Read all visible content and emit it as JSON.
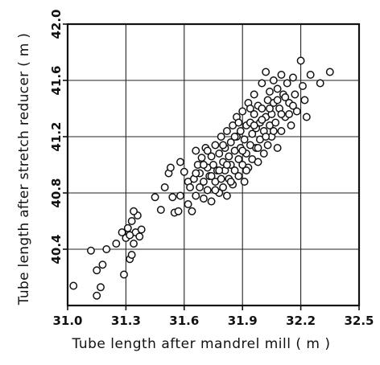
{
  "chart_data": {
    "type": "scatter",
    "title": "",
    "xlabel": "Tube length after mandrel mill ( m )",
    "ylabel": "Tube length after stretch reducer ( m )",
    "xlim": [
      31.0,
      32.5
    ],
    "ylim": [
      40.0,
      42.0
    ],
    "x_ticks": [
      "31.0",
      "31.3",
      "31.6",
      "31.9",
      "32.2",
      "32.5"
    ],
    "x_tick_values": [
      31.0,
      31.3,
      31.6,
      31.9,
      32.2,
      32.5
    ],
    "y_ticks": [
      "40.4",
      "40.8",
      "41.2",
      "41.6",
      "42.0"
    ],
    "y_tick_values": [
      40.4,
      40.8,
      41.2,
      41.6,
      42.0
    ],
    "grid": true,
    "marker": "open-circle",
    "points": [
      [
        31.03,
        40.14
      ],
      [
        31.12,
        40.39
      ],
      [
        31.15,
        40.07
      ],
      [
        31.17,
        40.13
      ],
      [
        31.18,
        40.29
      ],
      [
        31.2,
        40.4
      ],
      [
        31.15,
        40.25
      ],
      [
        31.25,
        40.44
      ],
      [
        31.28,
        40.52
      ],
      [
        31.29,
        40.22
      ],
      [
        31.3,
        40.48
      ],
      [
        31.31,
        40.55
      ],
      [
        31.32,
        40.33
      ],
      [
        31.33,
        40.36
      ],
      [
        31.33,
        40.6
      ],
      [
        31.34,
        40.44
      ],
      [
        31.35,
        40.52
      ],
      [
        31.36,
        40.64
      ],
      [
        31.34,
        40.67
      ],
      [
        31.37,
        40.49
      ],
      [
        31.38,
        40.54
      ],
      [
        31.32,
        40.5
      ],
      [
        31.45,
        40.77
      ],
      [
        31.48,
        40.68
      ],
      [
        31.5,
        40.84
      ],
      [
        31.52,
        40.94
      ],
      [
        31.53,
        40.98
      ],
      [
        31.54,
        40.77
      ],
      [
        31.55,
        40.66
      ],
      [
        31.57,
        40.67
      ],
      [
        31.58,
        41.02
      ],
      [
        31.58,
        40.78
      ],
      [
        31.6,
        40.95
      ],
      [
        31.62,
        40.72
      ],
      [
        31.62,
        40.88
      ],
      [
        31.63,
        40.84
      ],
      [
        31.64,
        40.67
      ],
      [
        31.65,
        40.9
      ],
      [
        31.66,
        41.1
      ],
      [
        31.66,
        40.78
      ],
      [
        31.67,
        41.0
      ],
      [
        31.68,
        40.94
      ],
      [
        31.68,
        40.84
      ],
      [
        31.69,
        41.05
      ],
      [
        31.7,
        40.88
      ],
      [
        31.7,
        40.76
      ],
      [
        31.71,
        41.12
      ],
      [
        31.72,
        40.98
      ],
      [
        31.72,
        40.82
      ],
      [
        31.73,
        40.92
      ],
      [
        31.74,
        41.06
      ],
      [
        31.74,
        40.74
      ],
      [
        31.75,
        41.0
      ],
      [
        31.76,
        40.88
      ],
      [
        31.76,
        41.14
      ],
      [
        31.77,
        40.96
      ],
      [
        31.78,
        40.8
      ],
      [
        31.78,
        41.08
      ],
      [
        31.79,
        41.2
      ],
      [
        31.79,
        40.9
      ],
      [
        31.8,
        41.02
      ],
      [
        31.8,
        40.84
      ],
      [
        31.81,
        41.12
      ],
      [
        31.81,
        40.96
      ],
      [
        31.82,
        41.24
      ],
      [
        31.82,
        40.78
      ],
      [
        31.83,
        41.06
      ],
      [
        31.83,
        40.9
      ],
      [
        31.84,
        41.16
      ],
      [
        31.84,
        41.0
      ],
      [
        31.85,
        41.28
      ],
      [
        31.85,
        40.86
      ],
      [
        31.86,
        41.1
      ],
      [
        31.86,
        40.96
      ],
      [
        31.87,
        41.34
      ],
      [
        31.87,
        41.2
      ],
      [
        31.88,
        41.04
      ],
      [
        31.88,
        40.92
      ],
      [
        31.89,
        41.24
      ],
      [
        31.89,
        41.12
      ],
      [
        31.9,
        41.38
      ],
      [
        31.9,
        41.0
      ],
      [
        31.91,
        41.18
      ],
      [
        31.91,
        40.88
      ],
      [
        31.92,
        41.28
      ],
      [
        31.92,
        41.08
      ],
      [
        31.93,
        41.44
      ],
      [
        31.93,
        40.98
      ],
      [
        31.94,
        41.14
      ],
      [
        31.94,
        41.3
      ],
      [
        31.95,
        41.22
      ],
      [
        31.95,
        41.04
      ],
      [
        31.96,
        41.5
      ],
      [
        31.96,
        41.36
      ],
      [
        31.97,
        41.12
      ],
      [
        31.97,
        41.26
      ],
      [
        31.98,
        41.42
      ],
      [
        31.98,
        41.02
      ],
      [
        31.99,
        41.3
      ],
      [
        31.99,
        41.18
      ],
      [
        32.0,
        41.58
      ],
      [
        32.0,
        41.4
      ],
      [
        32.01,
        41.08
      ],
      [
        32.01,
        41.24
      ],
      [
        32.02,
        41.66
      ],
      [
        32.02,
        41.34
      ],
      [
        32.03,
        41.46
      ],
      [
        32.03,
        41.14
      ],
      [
        32.04,
        41.28
      ],
      [
        32.04,
        41.52
      ],
      [
        32.05,
        41.36
      ],
      [
        32.05,
        41.2
      ],
      [
        32.06,
        41.6
      ],
      [
        32.06,
        41.44
      ],
      [
        32.07,
        41.3
      ],
      [
        32.08,
        41.54
      ],
      [
        32.08,
        41.12
      ],
      [
        32.09,
        41.4
      ],
      [
        32.1,
        41.64
      ],
      [
        32.1,
        41.24
      ],
      [
        32.11,
        41.5
      ],
      [
        32.12,
        41.34
      ],
      [
        32.13,
        41.58
      ],
      [
        32.14,
        41.44
      ],
      [
        32.15,
        41.28
      ],
      [
        32.16,
        41.62
      ],
      [
        32.17,
        41.5
      ],
      [
        32.18,
        41.38
      ],
      [
        32.2,
        41.74
      ],
      [
        32.21,
        41.56
      ],
      [
        32.22,
        41.46
      ],
      [
        32.23,
        41.34
      ],
      [
        32.25,
        41.64
      ],
      [
        32.3,
        41.58
      ],
      [
        32.35,
        41.66
      ],
      [
        31.66,
        40.94
      ],
      [
        31.7,
        41.0
      ],
      [
        31.72,
        41.1
      ],
      [
        31.74,
        40.92
      ],
      [
        31.76,
        40.82
      ],
      [
        31.78,
        40.96
      ],
      [
        31.8,
        41.14
      ],
      [
        31.82,
        41.0
      ],
      [
        31.84,
        40.88
      ],
      [
        31.86,
        41.2
      ],
      [
        31.88,
        41.3
      ],
      [
        31.9,
        41.1
      ],
      [
        31.92,
        40.96
      ],
      [
        31.94,
        41.4
      ],
      [
        31.96,
        41.28
      ],
      [
        31.98,
        41.12
      ],
      [
        32.0,
        41.32
      ],
      [
        32.02,
        41.2
      ],
      [
        32.04,
        41.4
      ],
      [
        32.06,
        41.24
      ],
      [
        32.08,
        41.46
      ],
      [
        32.1,
        41.36
      ],
      [
        32.12,
        41.48
      ],
      [
        32.14,
        41.36
      ],
      [
        32.16,
        41.42
      ]
    ]
  }
}
